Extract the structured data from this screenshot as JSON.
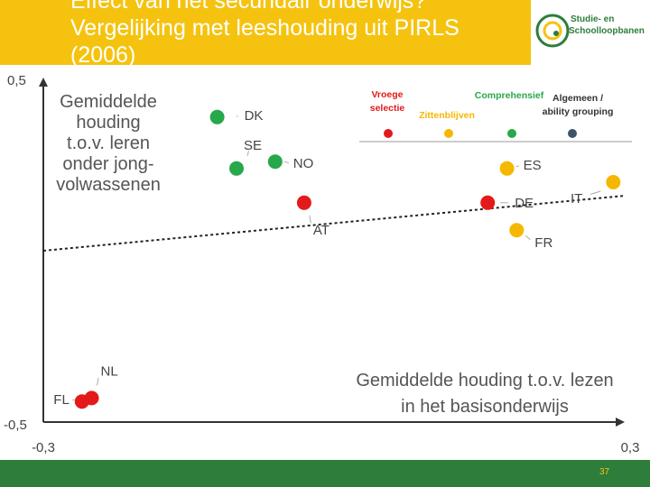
{
  "slide": {
    "title_lines": [
      "Effect van het secundair onderwijs?",
      "Vergelijking met leeshouding uit PIRLS",
      "(2006)"
    ],
    "logo_lines": [
      "Studie- en",
      "Schoolloopbanen"
    ],
    "page_number": "37"
  },
  "colors": {
    "header": "#f5c30f",
    "footer": "#2e7d3a",
    "red": "#e41a1a",
    "yellow": "#f5b800",
    "green": "#27a84a",
    "grey": "#3f5468"
  },
  "chart_data": {
    "type": "scatter",
    "xlim": [
      -0.3,
      0.3
    ],
    "ylim": [
      -0.5,
      0.5
    ],
    "x_tick_labels": [
      "-0,3",
      "0,3"
    ],
    "y_tick_labels": [
      "0,5",
      "-0,5"
    ],
    "xlabel_lines": [
      "Gemiddelde houding t.o.v. lezen",
      "in het basisonderwijs"
    ],
    "ylabel_lines": [
      "Gemiddelde",
      "houding",
      "t.o.v. leren",
      "onder jong-",
      "volwassenen"
    ],
    "legend": [
      {
        "lines": [
          "Vroege",
          "selectie"
        ],
        "color": "#e41a1a"
      },
      {
        "lines": [
          "Zittenblijven"
        ],
        "color": "#f5b800"
      },
      {
        "lines": [
          "Comprehensief"
        ],
        "color": "#27a84a"
      },
      {
        "lines": [
          "Algemeen /",
          "ability grouping"
        ],
        "color": "#3f5468"
      }
    ],
    "points": [
      {
        "label": "DK",
        "x": -0.12,
        "y": 0.39,
        "group": "green"
      },
      {
        "label": "SE",
        "x": -0.1,
        "y": 0.24,
        "group": "green"
      },
      {
        "label": "NO",
        "x": -0.06,
        "y": 0.26,
        "group": "green"
      },
      {
        "label": "ES",
        "x": 0.18,
        "y": 0.24,
        "group": "yellow"
      },
      {
        "label": "IT",
        "x": 0.29,
        "y": 0.2,
        "group": "yellow"
      },
      {
        "label": "AT",
        "x": -0.03,
        "y": 0.14,
        "group": "red"
      },
      {
        "label": "DE",
        "x": 0.16,
        "y": 0.14,
        "group": "red"
      },
      {
        "label": "FR",
        "x": 0.19,
        "y": 0.06,
        "group": "yellow"
      },
      {
        "label": "NL",
        "x": -0.25,
        "y": -0.43,
        "group": "red"
      },
      {
        "label": "FL",
        "x": -0.26,
        "y": -0.44,
        "group": "red"
      }
    ],
    "trendline": {
      "x": [
        -0.3,
        0.3
      ],
      "y": [
        0.0,
        0.16
      ]
    }
  }
}
